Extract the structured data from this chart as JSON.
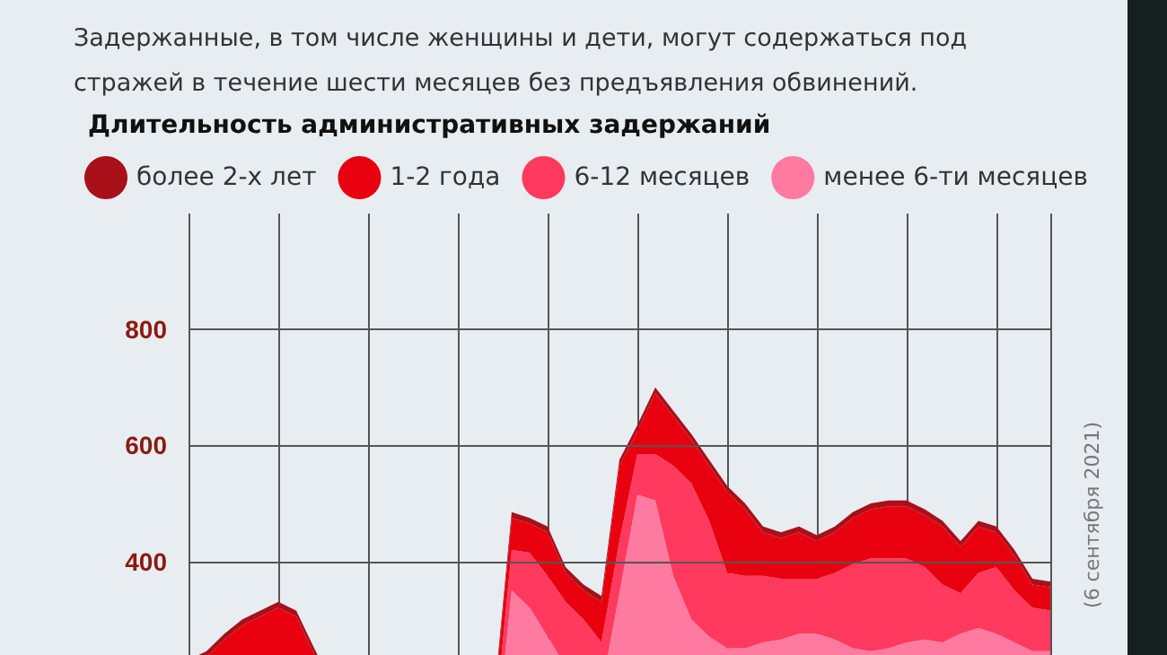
{
  "chart_data": {
    "type": "area",
    "stacked": true,
    "title": "Длительность административных задержаний",
    "subtitle": "Задержанные, в том числе женщины и дети, могут содержаться под\nстражей в течение шести месяцев без предъявления обвинений.",
    "annotations": [
      "(6 сентября 2021)"
    ],
    "categories": [
      null,
      null,
      null,
      null,
      null,
      null,
      null,
      null,
      null,
      null,
      null,
      null,
      null,
      null,
      null,
      null,
      null,
      null,
      null,
      null,
      null,
      null,
      null,
      null,
      null,
      null,
      null,
      null,
      null,
      null,
      null,
      null,
      null,
      null,
      null,
      null,
      null,
      null,
      null,
      null,
      null,
      null,
      null,
      null,
      null,
      null,
      null,
      null,
      null
    ],
    "series": [
      {
        "name": "менее 6-ти месяцев",
        "color": "#ff7aa0",
        "values": [
          70,
          75,
          85,
          90,
          95,
          100,
          95,
          75,
          55,
          40,
          30,
          25,
          25,
          25,
          30,
          30,
          35,
          50,
          350,
          320,
          270,
          220,
          200,
          180,
          345,
          515,
          505,
          375,
          300,
          270,
          250,
          250,
          260,
          265,
          275,
          275,
          265,
          250,
          245,
          250,
          260,
          265,
          260,
          275,
          285,
          275,
          260,
          245,
          245
        ]
      },
      {
        "name": "6-12 месяцев",
        "color": "#ff3a5e",
        "values": [
          70,
          75,
          85,
          90,
          95,
          100,
          95,
          75,
          55,
          40,
          30,
          25,
          25,
          25,
          30,
          30,
          35,
          50,
          70,
          95,
          105,
          110,
          100,
          80,
          90,
          70,
          80,
          190,
          235,
          200,
          130,
          125,
          115,
          105,
          95,
          95,
          115,
          145,
          160,
          155,
          145,
          125,
          100,
          70,
          95,
          115,
          90,
          75,
          70
        ]
      },
      {
        "name": "1-2 года",
        "color": "#e8000f",
        "values": [
          80,
          85,
          95,
          110,
          115,
          120,
          115,
          90,
          70,
          40,
          30,
          25,
          25,
          30,
          30,
          35,
          35,
          50,
          55,
          50,
          75,
          50,
          50,
          70,
          130,
          40,
          105,
          85,
          75,
          95,
          140,
          115,
          75,
          70,
          80,
          65,
          70,
          80,
          85,
          90,
          90,
          90,
          100,
          80,
          80,
          60,
          60,
          40,
          40
        ]
      },
      {
        "name": "более 2-х лет",
        "color": "#a8101a",
        "values": [
          10,
          10,
          10,
          10,
          10,
          10,
          10,
          10,
          10,
          10,
          10,
          10,
          10,
          10,
          10,
          10,
          10,
          10,
          10,
          10,
          10,
          10,
          10,
          10,
          10,
          10,
          10,
          10,
          10,
          10,
          10,
          10,
          10,
          10,
          10,
          10,
          10,
          10,
          10,
          10,
          10,
          10,
          10,
          10,
          10,
          10,
          10,
          10,
          10
        ]
      }
    ],
    "ylim": [
      0,
      1000
    ],
    "yticks": [
      400,
      600,
      800
    ],
    "grid": true,
    "legend": "top left"
  }
}
